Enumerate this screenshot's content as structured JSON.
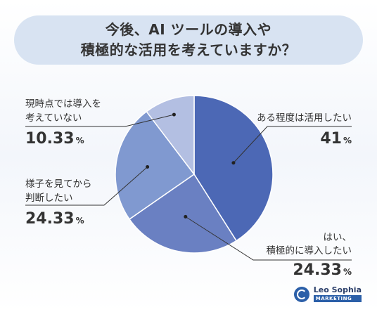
{
  "title": {
    "line1": "今後、AI ツールの導入や",
    "line2": "積極的な活用を考えていますか？"
  },
  "chart_data": {
    "type": "pie",
    "slices": [
      {
        "label_lines": [
          "ある程度は活用したい"
        ],
        "value": 41,
        "value_text": "41",
        "color": "#4c68b5"
      },
      {
        "label_lines": [
          "はい、",
          "積極的に導入したい"
        ],
        "value": 24.33,
        "value_text": "24.33",
        "color": "#6a80c2"
      },
      {
        "label_lines": [
          "様子を見てから",
          "判断したい"
        ],
        "value": 24.33,
        "value_text": "24.33",
        "color": "#8099d0"
      },
      {
        "label_lines": [
          "現時点では導入を",
          "考えていない"
        ],
        "value": 10.33,
        "value_text": "10.33",
        "color": "#b3bfe2"
      }
    ],
    "unit": "%"
  },
  "logo": {
    "name": "Leo Sophia",
    "sub": "MARKETING"
  }
}
